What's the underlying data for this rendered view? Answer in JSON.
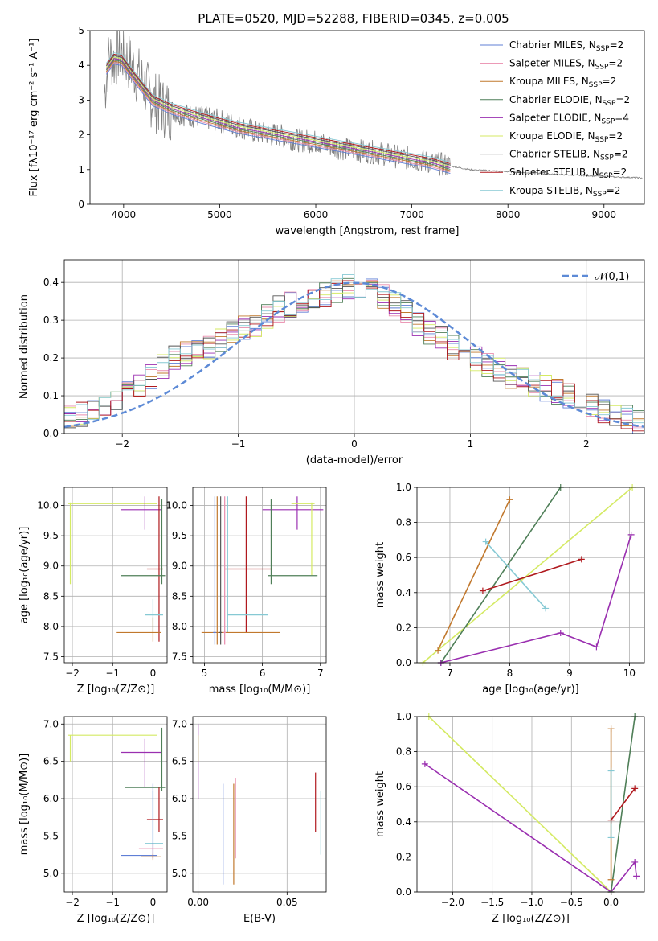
{
  "figure": {
    "title": "PLATE=0520, MJD=52288, FIBERID=0345, z=0.005"
  },
  "legend_labels": [
    {
      "name": "Chabrier MILES",
      "nssp": "2",
      "color": "#5f7fd6"
    },
    {
      "name": "Salpeter MILES",
      "nssp": "2",
      "color": "#e98cad"
    },
    {
      "name": "Kroupa MILES",
      "nssp": "2",
      "color": "#c1782d"
    },
    {
      "name": "Chabrier ELODIE",
      "nssp": "2",
      "color": "#4f7f58"
    },
    {
      "name": "Salpeter ELODIE",
      "nssp": "4",
      "color": "#9a2fb0"
    },
    {
      "name": "Kroupa ELODIE",
      "nssp": "2",
      "color": "#d4ea63"
    },
    {
      "name": "Chabrier STELIB",
      "nssp": "2",
      "color": "#555555"
    },
    {
      "name": "Salpeter STELIB",
      "nssp": "2",
      "color": "#b0191e"
    },
    {
      "name": "Kroupa STELIB",
      "nssp": "2",
      "color": "#86c9d4"
    }
  ],
  "chart_data": [
    {
      "id": "spectrum",
      "type": "line",
      "xlabel": "wavelength [Angstrom, rest frame]",
      "ylabel": "Flux [f_λ10^-17 erg cm^-2 s^-1 A^-1]",
      "xlim": [
        3650,
        9420
      ],
      "ylim": [
        0,
        5
      ],
      "xticks": [
        4000,
        5000,
        6000,
        7000,
        8000,
        9000
      ],
      "yticks": [
        0,
        1,
        2,
        3,
        4,
        5
      ],
      "data_color": "#808080",
      "data_x": [
        3800,
        3850,
        3900,
        3950,
        4000,
        4100,
        4200,
        4300,
        4400,
        4600,
        4800,
        5000,
        5200,
        5400,
        5600,
        5800,
        6000,
        6200,
        6400,
        6600,
        6800,
        7000,
        7200,
        7400,
        7600,
        7800,
        8000,
        8200,
        8400,
        8600,
        8800,
        9000,
        9200,
        9400
      ],
      "data_y": [
        3.2,
        4.3,
        4.1,
        4.4,
        4.3,
        3.9,
        3.5,
        3.0,
        2.8,
        2.6,
        2.5,
        2.4,
        2.25,
        2.05,
        2.0,
        1.85,
        1.8,
        1.65,
        1.55,
        1.5,
        1.4,
        1.3,
        1.2,
        1.1,
        1.0,
        0.97,
        0.94,
        0.91,
        0.88,
        0.85,
        0.83,
        0.8,
        0.78,
        0.76
      ],
      "model_x": [
        3820,
        3900,
        3980,
        4100,
        4300,
        4500,
        4800,
        5000,
        5200,
        5500,
        5800,
        6000,
        6300,
        6600,
        6900,
        7200,
        7400
      ],
      "model_y": [
        3.9,
        4.2,
        4.15,
        3.7,
        3.0,
        2.75,
        2.5,
        2.35,
        2.2,
        2.05,
        1.9,
        1.8,
        1.65,
        1.5,
        1.35,
        1.2,
        1.05
      ],
      "legend_position": "top-right"
    },
    {
      "id": "residuals",
      "type": "histogram",
      "xlabel": "(data-model)/error",
      "ylabel": "Normed distribution",
      "xlim": [
        -2.5,
        2.5
      ],
      "ylim": [
        0,
        0.46
      ],
      "xticks": [
        -2,
        -1,
        0,
        1,
        2
      ],
      "yticks": [
        0.0,
        0.1,
        0.2,
        0.3,
        0.4
      ],
      "reference_label": "𝒩(0,1)",
      "reference_color": "#5d8ad6",
      "bin_edges": [
        -2.5,
        -2.4,
        -2.3,
        -2.2,
        -2.1,
        -2.0,
        -1.9,
        -1.8,
        -1.7,
        -1.6,
        -1.5,
        -1.4,
        -1.3,
        -1.2,
        -1.1,
        -1.0,
        -0.9,
        -0.8,
        -0.7,
        -0.6,
        -0.5,
        -0.4,
        -0.3,
        -0.2,
        -0.1,
        0.0,
        0.1,
        0.2,
        0.3,
        0.4,
        0.5,
        0.6,
        0.7,
        0.8,
        0.9,
        1.0,
        1.1,
        1.2,
        1.3,
        1.4,
        1.5,
        1.6,
        1.7,
        1.8,
        1.9,
        2.0,
        2.1,
        2.2,
        2.3,
        2.4,
        2.5
      ],
      "base_density": [
        0.04,
        0.05,
        0.06,
        0.07,
        0.09,
        0.11,
        0.13,
        0.15,
        0.18,
        0.2,
        0.21,
        0.22,
        0.23,
        0.25,
        0.27,
        0.28,
        0.29,
        0.31,
        0.33,
        0.34,
        0.35,
        0.36,
        0.37,
        0.38,
        0.39,
        0.39,
        0.38,
        0.36,
        0.34,
        0.32,
        0.29,
        0.27,
        0.25,
        0.23,
        0.21,
        0.2,
        0.18,
        0.17,
        0.15,
        0.14,
        0.13,
        0.12,
        0.11,
        0.1,
        0.08,
        0.07,
        0.06,
        0.05,
        0.04,
        0.03
      ]
    },
    {
      "id": "z-vs-age",
      "type": "errorbar",
      "xlabel": "Z [log10(Z/Z⊙)]",
      "ylabel": "age [log10(age/yr)]",
      "xlim": [
        -2.2,
        0.35
      ],
      "ylim": [
        7.4,
        10.3
      ],
      "xticks": [
        -2,
        -1,
        0
      ],
      "yticks": [
        7.5,
        8.0,
        8.5,
        9.0,
        9.5,
        10.0
      ],
      "points": [
        {
          "c": 5,
          "x": -2.05,
          "y": 10.03,
          "x0": -2.1,
          "x1": 0.1,
          "y0": 8.7,
          "y1": 10.05
        },
        {
          "c": 4,
          "x": -0.2,
          "y": 9.93,
          "x0": -0.8,
          "x1": 0.2,
          "y0": 9.6,
          "y1": 10.15
        },
        {
          "c": 7,
          "x": 0.15,
          "y": 8.95,
          "x0": -0.15,
          "x1": 0.25,
          "y0": 7.75,
          "y1": 10.15
        },
        {
          "c": 3,
          "x": 0.22,
          "y": 8.84,
          "x0": -0.8,
          "x1": 0.3,
          "y0": 8.7,
          "y1": 10.1
        },
        {
          "c": 8,
          "x": 0.0,
          "y": 8.19,
          "x0": -0.2,
          "x1": 0.25,
          "y0": 7.9,
          "y1": 8.45
        },
        {
          "c": 2,
          "x": 0.0,
          "y": 7.9,
          "x0": -0.9,
          "x1": 0.2,
          "y0": 7.75,
          "y1": 8.15
        }
      ]
    },
    {
      "id": "mass-vs-age",
      "type": "errorbar",
      "xlabel": "mass [log10(M/M⊙)]",
      "ylabel": "",
      "xlim": [
        4.8,
        7.1
      ],
      "ylim": [
        7.4,
        10.3
      ],
      "xticks": [
        5,
        6,
        7
      ],
      "yticks": [
        7.5,
        8.0,
        8.5,
        9.0,
        9.5,
        10.0
      ],
      "points": [
        {
          "c": 4,
          "x": 6.6,
          "y": 9.93,
          "x0": 6.0,
          "x1": 7.05,
          "y0": 9.6,
          "y1": 10.15
        },
        {
          "c": 5,
          "x": 6.85,
          "y": 10.03,
          "x0": 6.5,
          "x1": 6.9,
          "y0": 8.85,
          "y1": 10.05
        },
        {
          "c": 3,
          "x": 6.15,
          "y": 8.84,
          "x0": 6.1,
          "x1": 6.95,
          "y0": 8.7,
          "y1": 10.1
        },
        {
          "c": 7,
          "x": 5.72,
          "y": 8.95,
          "x0": 5.35,
          "x1": 6.15,
          "y0": 7.9,
          "y1": 10.15
        },
        {
          "c": 8,
          "x": 5.4,
          "y": 8.19,
          "x0": 5.4,
          "x1": 6.1,
          "y0": 7.9,
          "y1": 10.15
        },
        {
          "c": 2,
          "x": 5.22,
          "y": 7.9,
          "x0": 4.95,
          "x1": 6.3,
          "y0": 7.7,
          "y1": 10.15
        },
        {
          "c": 6,
          "x": 5.28,
          "y": 7.9,
          "x0": 5.25,
          "x1": 5.3,
          "y0": 7.7,
          "y1": 10.15
        },
        {
          "c": 0,
          "x": 5.18,
          "y": 7.9,
          "x0": 5.15,
          "x1": 5.2,
          "y0": 7.7,
          "y1": 10.15
        },
        {
          "c": 1,
          "x": 5.35,
          "y": 7.9,
          "x0": 5.33,
          "x1": 5.37,
          "y0": 7.7,
          "y1": 10.15
        }
      ]
    },
    {
      "id": "age-vs-weight",
      "type": "line",
      "xlabel": "age [log10(age/yr)]",
      "ylabel": "mass weight",
      "xlim": [
        6.45,
        10.25
      ],
      "ylim": [
        0,
        1
      ],
      "xticks": [
        7,
        8,
        9,
        10
      ],
      "yticks": [
        0.0,
        0.2,
        0.4,
        0.6,
        0.8,
        1.0
      ],
      "series": [
        {
          "c": 5,
          "x": [
            6.55,
            10.05
          ],
          "y": [
            0.0,
            1.0
          ]
        },
        {
          "c": 3,
          "x": [
            6.85,
            8.85
          ],
          "y": [
            0.0,
            1.0
          ]
        },
        {
          "c": 2,
          "x": [
            6.8,
            8.0
          ],
          "y": [
            0.07,
            0.93
          ]
        },
        {
          "c": 8,
          "x": [
            7.6,
            8.6
          ],
          "y": [
            0.69,
            0.31
          ]
        },
        {
          "c": 7,
          "x": [
            7.55,
            9.2
          ],
          "y": [
            0.41,
            0.59
          ]
        },
        {
          "c": 4,
          "x": [
            6.85,
            8.85,
            9.45,
            10.03
          ],
          "y": [
            0.0,
            0.17,
            0.09,
            0.73
          ]
        }
      ]
    },
    {
      "id": "z-vs-mass",
      "type": "errorbar",
      "xlabel": "Z [log10(Z/Z⊙)]",
      "ylabel": "mass [log10(M/M⊙)]",
      "xlim": [
        -2.2,
        0.35
      ],
      "ylim": [
        4.75,
        7.1
      ],
      "xticks": [
        -2,
        -1,
        0
      ],
      "yticks": [
        5.0,
        5.5,
        6.0,
        6.5,
        7.0
      ],
      "points": [
        {
          "c": 5,
          "x": -2.05,
          "y": 6.85,
          "x0": -2.1,
          "x1": 0.1,
          "y0": 6.5,
          "y1": 6.85
        },
        {
          "c": 4,
          "x": -0.2,
          "y": 6.62,
          "x0": -0.8,
          "x1": 0.2,
          "y0": 6.15,
          "y1": 6.8
        },
        {
          "c": 3,
          "x": 0.22,
          "y": 6.15,
          "x0": -0.7,
          "x1": 0.3,
          "y0": 6.1,
          "y1": 6.95
        },
        {
          "c": 7,
          "x": 0.15,
          "y": 5.72,
          "x0": -0.15,
          "x1": 0.25,
          "y0": 5.55,
          "y1": 6.15
        },
        {
          "c": 8,
          "x": 0.0,
          "y": 5.4,
          "x0": -0.2,
          "x1": 0.25,
          "y0": 5.25,
          "y1": 6.1
        },
        {
          "c": 0,
          "x": 0.0,
          "y": 5.24,
          "x0": -0.8,
          "x1": 0.1,
          "y0": 5.2,
          "y1": 6.2
        },
        {
          "c": 1,
          "x": 0.0,
          "y": 5.33,
          "x0": -0.35,
          "x1": 0.25,
          "y0": 5.2,
          "y1": 5.4
        },
        {
          "c": 2,
          "x": 0.0,
          "y": 5.22,
          "x0": -0.3,
          "x1": 0.2,
          "y0": 5.18,
          "y1": 5.26
        }
      ]
    },
    {
      "id": "ebv",
      "type": "vlines",
      "xlabel": "E(B-V)",
      "ylabel": "",
      "xlim": [
        -0.003,
        0.072
      ],
      "ylim": [
        4.75,
        7.1
      ],
      "xticks": [
        0.0,
        0.05
      ],
      "xtick_labels": [
        "0.00",
        "0.05"
      ],
      "yticks": [
        5.0,
        5.5,
        6.0,
        6.5,
        7.0
      ],
      "lines": [
        {
          "c": 4,
          "x": 0.0,
          "y0": 6.0,
          "y1": 7.0
        },
        {
          "c": 5,
          "x": 0.0,
          "y0": 6.5,
          "y1": 6.85
        },
        {
          "c": 0,
          "x": 0.014,
          "y0": 4.85,
          "y1": 6.2
        },
        {
          "c": 2,
          "x": 0.02,
          "y0": 4.85,
          "y1": 6.2
        },
        {
          "c": 1,
          "x": 0.021,
          "y0": 5.2,
          "y1": 6.28
        },
        {
          "c": 7,
          "x": 0.066,
          "y0": 5.55,
          "y1": 6.35
        },
        {
          "c": 8,
          "x": 0.069,
          "y0": 5.25,
          "y1": 6.1
        }
      ]
    },
    {
      "id": "z-vs-weight",
      "type": "line",
      "xlabel": "Z [log10(Z/Z⊙)]",
      "ylabel": "mass weight",
      "xlim": [
        -2.45,
        0.42
      ],
      "ylim": [
        0,
        1
      ],
      "xticks": [
        -2.0,
        -1.5,
        -1.0,
        -0.5,
        0.0
      ],
      "xtick_labels": [
        "−2.0",
        "−1.5",
        "−1.0",
        "−0.5",
        "0.0"
      ],
      "yticks": [
        0.0,
        0.2,
        0.4,
        0.6,
        0.8,
        1.0
      ],
      "series": [
        {
          "c": 5,
          "x": [
            -2.3,
            0.0
          ],
          "y": [
            1.0,
            0.0
          ]
        },
        {
          "c": 4,
          "x": [
            -2.35,
            0.0,
            0.3,
            0.32
          ],
          "y": [
            0.73,
            0.0,
            0.17,
            0.09
          ]
        },
        {
          "c": 3,
          "x": [
            0.0,
            0.3
          ],
          "y": [
            0.0,
            1.0
          ]
        },
        {
          "c": 2,
          "x": [
            0.0,
            0.0
          ],
          "y": [
            0.07,
            0.93
          ]
        },
        {
          "c": 8,
          "x": [
            0.0,
            0.0
          ],
          "y": [
            0.31,
            0.69
          ]
        },
        {
          "c": 7,
          "x": [
            0.0,
            0.3
          ],
          "y": [
            0.41,
            0.59
          ]
        }
      ]
    }
  ]
}
